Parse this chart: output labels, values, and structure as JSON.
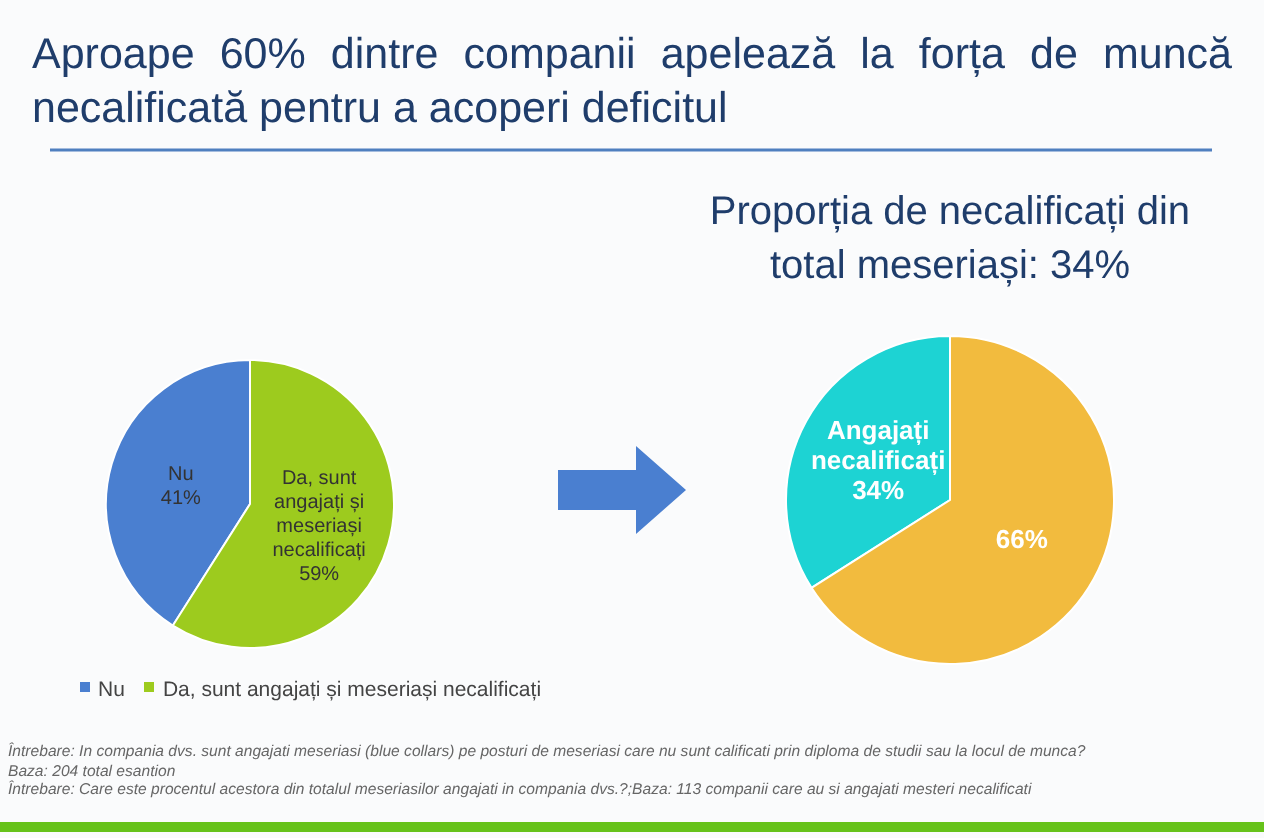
{
  "chart_data": [
    {
      "type": "pie",
      "title": "Aproape 60% dintre companii apelează la forța de muncă necalificată pentru a acoperi deficitul",
      "categories": [
        "Nu",
        "Da, sunt angajați și meseriași necalificați"
      ],
      "values": [
        41,
        59
      ],
      "colors": [
        "#4a7fd0",
        "#9dcb1e"
      ],
      "value_labels": [
        "41%",
        "59%"
      ],
      "legend": "bottom",
      "annotations": [
        "Întrebare: In compania dvs. sunt angajati meseriasi (blue collars) pe posturi de meseriasi care nu sunt calificati prin diploma de studii sau la locul de munca?",
        "Baza: 204 total esantion",
        "Întrebare: Care este procentul acestora din totalul meseriasilor angajati in compania dvs.?;Baza: 113 companii care au si angajati mesteri necalificati"
      ]
    },
    {
      "type": "pie",
      "title": "Proporția de necalificați din total meseriași: 34%",
      "categories": [
        "Angajați necalificați",
        null
      ],
      "values": [
        34,
        66
      ],
      "colors": [
        "#1dd3d3",
        "#f2bb3e"
      ],
      "value_labels": [
        "34%",
        "66%"
      ]
    }
  ]
}
